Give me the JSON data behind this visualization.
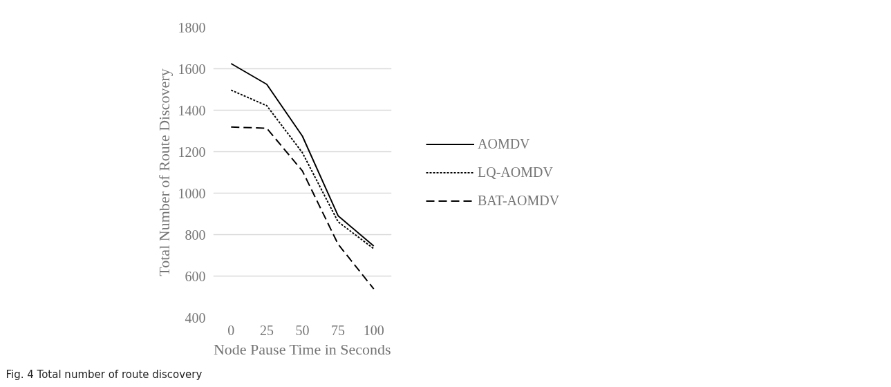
{
  "chart_data": {
    "type": "line",
    "xlabel": "Node Pause Time in Seconds",
    "ylabel": "Total Number of Route Discovery",
    "categories": [
      "0",
      "25",
      "50",
      "75",
      "100"
    ],
    "series": [
      {
        "name": "AOMDV",
        "color": "#000000",
        "line_style": "solid",
        "values": [
          1625,
          1525,
          1275,
          891,
          745
        ]
      },
      {
        "name": "LQ-AOMDV",
        "color": "#000000",
        "line_style": "dotted",
        "values": [
          1497,
          1422,
          1195,
          862,
          732
        ]
      },
      {
        "name": "BAT-AOMDV",
        "color": "#000000",
        "line_style": "dashed",
        "values": [
          1319,
          1313,
          1107,
          754,
          538
        ]
      }
    ],
    "ylim": [
      400,
      1800
    ],
    "yticks": [
      400,
      600,
      800,
      1000,
      1200,
      1400,
      1600,
      1800
    ],
    "grid": "y",
    "legend": "right",
    "marker": "none",
    "annotations": [
      "Fig. 4 Total number of route discovery"
    ]
  }
}
